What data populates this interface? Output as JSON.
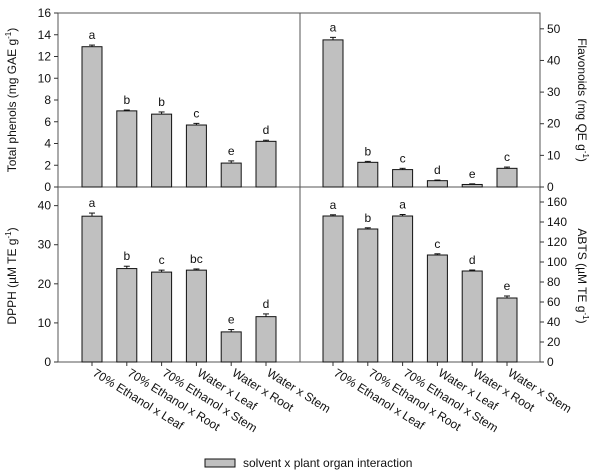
{
  "chart_data": [
    {
      "type": "bar",
      "panel": "top-left",
      "ylabel": "Total phenols (mg GAE g",
      "ylabel_sup": "-1",
      "ylabel_end": ")",
      "axis_side": "left",
      "ylim": [
        0,
        16
      ],
      "ticks": [
        0,
        2,
        4,
        6,
        8,
        10,
        12,
        14,
        16
      ],
      "values": [
        12.9,
        7.0,
        6.7,
        5.7,
        2.2,
        4.2
      ],
      "errors": [
        0.15,
        0.08,
        0.2,
        0.15,
        0.2,
        0.1
      ],
      "letters": [
        "a",
        "b",
        "b",
        "c",
        "e",
        "d"
      ]
    },
    {
      "type": "bar",
      "panel": "top-right",
      "ylabel": "Flavonoids (mg QE g",
      "ylabel_sup": "-1",
      "ylabel_end": ")",
      "axis_side": "right",
      "ylim": [
        0,
        55
      ],
      "ticks": [
        0,
        10,
        20,
        30,
        40,
        50
      ],
      "values": [
        46.5,
        7.8,
        5.5,
        2.0,
        0.8,
        5.9
      ],
      "errors": [
        0.8,
        0.3,
        0.4,
        0.2,
        0.2,
        0.4
      ],
      "letters": [
        "a",
        "b",
        "c",
        "d",
        "e",
        "c"
      ]
    },
    {
      "type": "bar",
      "panel": "bottom-left",
      "ylabel": "DPPH (µM TE g",
      "ylabel_sup": "-1",
      "ylabel_end": ")",
      "axis_side": "left",
      "ylim": [
        0,
        44
      ],
      "ticks": [
        0,
        10,
        20,
        30,
        40
      ],
      "values": [
        37.3,
        23.9,
        23.0,
        23.5,
        7.7,
        11.6
      ],
      "errors": [
        0.8,
        0.6,
        0.5,
        0.3,
        0.6,
        0.7
      ],
      "letters": [
        "a",
        "b",
        "c",
        "bc",
        "e",
        "d"
      ]
    },
    {
      "type": "bar",
      "panel": "bottom-right",
      "ylabel": "ABTS (µM TE g",
      "ylabel_sup": "-1",
      "ylabel_end": ")",
      "axis_side": "right",
      "ylim": [
        0,
        172
      ],
      "ticks": [
        0,
        20,
        40,
        60,
        80,
        100,
        120,
        140,
        160
      ],
      "values": [
        146,
        133,
        146,
        107,
        91,
        64
      ],
      "errors": [
        1.2,
        1.2,
        1.5,
        1.2,
        1.0,
        2.0
      ],
      "letters": [
        "a",
        "b",
        "a",
        "c",
        "d",
        "e"
      ]
    }
  ],
  "categories": [
    "70% Ethanol x Leaf",
    "70% Ethanol x Root",
    "70% Ethanol x Stem",
    "Water x Leaf",
    "Water x Root",
    "Water x Stem"
  ],
  "legend": {
    "label": "solvent x plant organ interaction",
    "position": "bottom"
  },
  "colors": {
    "bar": "#c0c0c0",
    "edge": "#111111"
  }
}
